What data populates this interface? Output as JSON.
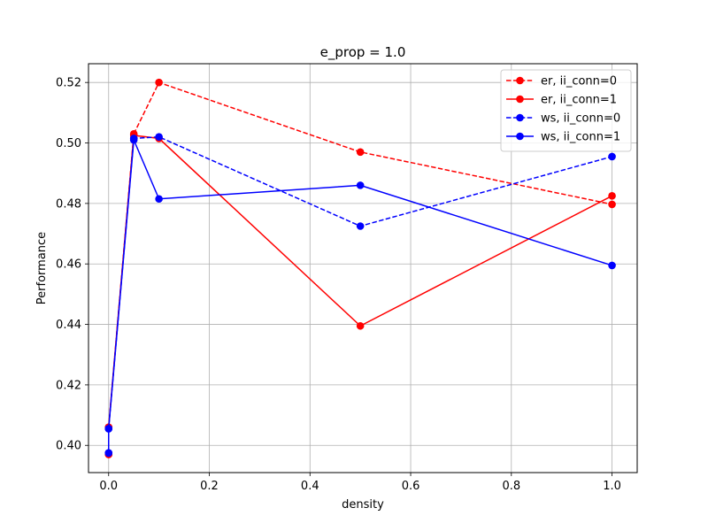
{
  "chart_data": {
    "type": "line",
    "title": "e_prop = 1.0",
    "xlabel": "density",
    "ylabel": "Performance",
    "xlim": [
      -0.04,
      1.05
    ],
    "ylim": [
      0.391,
      0.5262
    ],
    "xticks": [
      0.0,
      0.2,
      0.4,
      0.6,
      0.8,
      1.0
    ],
    "xtick_labels": [
      "0.0",
      "0.2",
      "0.4",
      "0.6",
      "0.8",
      "1.0"
    ],
    "yticks": [
      0.4,
      0.42,
      0.44,
      0.46,
      0.48,
      0.5,
      0.52
    ],
    "ytick_labels": [
      "0.40",
      "0.42",
      "0.44",
      "0.46",
      "0.48",
      "0.50",
      "0.52"
    ],
    "grid": true,
    "legend_position": "top-right",
    "series": [
      {
        "name": "er, ii_conn=0",
        "color": "#ff0000",
        "linestyle": "dashed",
        "marker": "circle",
        "x": [
          0.0,
          0.0,
          0.05,
          0.1,
          0.5,
          1.0
        ],
        "y": [
          0.397,
          0.406,
          0.503,
          0.52,
          0.497,
          0.4797
        ]
      },
      {
        "name": "er, ii_conn=1",
        "color": "#ff0000",
        "linestyle": "solid",
        "marker": "circle",
        "x": [
          0.0,
          0.0,
          0.05,
          0.1,
          0.5,
          1.0
        ],
        "y": [
          0.397,
          0.406,
          0.5025,
          0.5015,
          0.4395,
          0.4825
        ]
      },
      {
        "name": "ws, ii_conn=0",
        "color": "#0000ff",
        "linestyle": "dashed",
        "marker": "circle",
        "x": [
          0.0,
          0.0,
          0.05,
          0.1,
          0.5,
          1.0
        ],
        "y": [
          0.3975,
          0.4055,
          0.5015,
          0.502,
          0.4725,
          0.4955
        ]
      },
      {
        "name": "ws, ii_conn=1",
        "color": "#0000ff",
        "linestyle": "solid",
        "marker": "circle",
        "x": [
          0.0,
          0.0,
          0.05,
          0.1,
          0.5,
          1.0
        ],
        "y": [
          0.3975,
          0.4055,
          0.501,
          0.4815,
          0.486,
          0.4595
        ]
      }
    ]
  }
}
